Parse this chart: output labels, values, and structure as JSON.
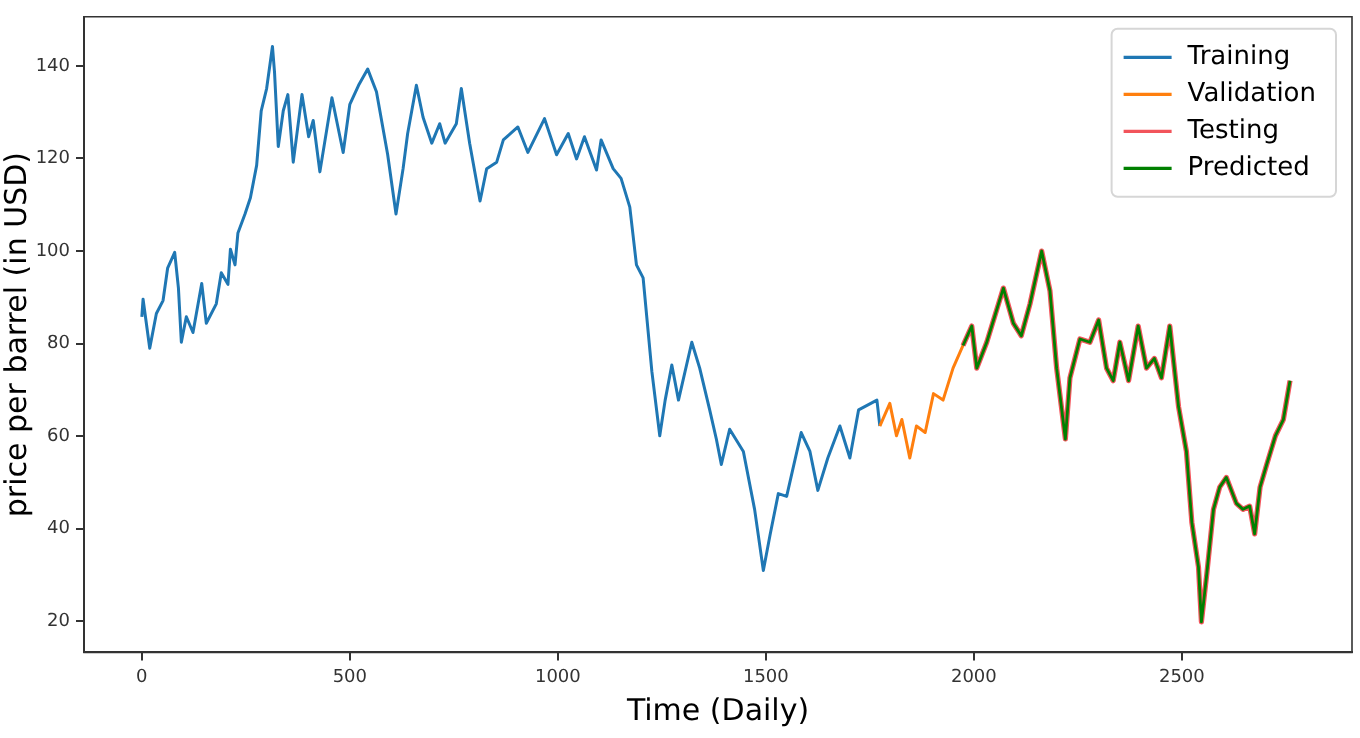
{
  "chart_data": {
    "type": "line",
    "xlabel": "Time (Daily)",
    "ylabel": "price per barrel (in USD)",
    "xlim": [
      -139,
      2909
    ],
    "ylim": [
      13.3,
      150.6
    ],
    "xticks": [
      0,
      500,
      1000,
      1500,
      2000,
      2500
    ],
    "yticks": [
      20,
      40,
      60,
      80,
      100,
      120,
      140
    ],
    "grid": false,
    "legend": "top right",
    "marker": "none",
    "line_style": "solid",
    "series": [
      {
        "name": "Training",
        "color": "#1f77b4",
        "x": [
          0,
          3,
          19,
          35,
          51,
          62,
          79,
          88,
          95,
          107,
          123,
          144,
          155,
          179,
          191,
          207,
          213,
          224,
          231,
          248,
          261,
          276,
          287,
          300,
          314,
          319,
          328,
          340,
          351,
          364,
          385,
          401,
          412,
          428,
          457,
          484,
          500,
          521,
          543,
          564,
          591,
          611,
          628,
          639,
          660,
          676,
          697,
          716,
          729,
          756,
          768,
          788,
          813,
          829,
          853,
          869,
          904,
          928,
          968,
          997,
          1025,
          1045,
          1064,
          1093,
          1104,
          1133,
          1152,
          1173,
          1189,
          1205,
          1226,
          1245,
          1258,
          1274,
          1290,
          1322,
          1341,
          1365,
          1381,
          1393,
          1413,
          1446,
          1473,
          1494,
          1510,
          1530,
          1550,
          1585,
          1606,
          1625,
          1649,
          1678,
          1702,
          1723,
          1767,
          1774
        ],
        "values": [
          85.8,
          89.6,
          79,
          86.5,
          89.3,
          96.3,
          99.7,
          92,
          80.3,
          85.8,
          82.4,
          93,
          84.4,
          88.6,
          95.3,
          92.8,
          100.4,
          97,
          103.9,
          108,
          111.5,
          118.5,
          130.3,
          135.1,
          144.2,
          138.6,
          122.6,
          130.3,
          133.8,
          119.2,
          133.8,
          124.7,
          128.2,
          117.1,
          133.1,
          121.3,
          131.7,
          135.8,
          139.3,
          134.4,
          120.8,
          108,
          117.8,
          125.4,
          135.8,
          128.9,
          123.3,
          127.5,
          123.3,
          127.5,
          135.1,
          123.3,
          110.8,
          117.8,
          119.2,
          124,
          126.8,
          121.3,
          128.6,
          120.8,
          125.4,
          119.9,
          124.7,
          117.5,
          124,
          117.8,
          115.7,
          109.5,
          97,
          94.2,
          74,
          60.1,
          67.8,
          75.4,
          67.8,
          80.3,
          74.7,
          65.7,
          59.4,
          53.9,
          61.5,
          56.7,
          44.2,
          31,
          38.6,
          47.6,
          47,
          60.8,
          56.7,
          48.3,
          55.3,
          62.2,
          55.3,
          65.7,
          67.8,
          62.2
        ]
      },
      {
        "name": "Validation",
        "color": "#ff7f0e",
        "x": [
          1774,
          1798,
          1814,
          1827,
          1846,
          1862,
          1883,
          1903,
          1926,
          1950,
          1974
        ],
        "values": [
          62.2,
          67.1,
          60.1,
          63.6,
          55.3,
          62.2,
          60.8,
          69.2,
          67.8,
          74.7,
          79.6
        ]
      },
      {
        "name": "Testing",
        "color": "#f2545b",
        "x": [
          1974,
          1995,
          2007,
          2031,
          2071,
          2095,
          2114,
          2135,
          2163,
          2183,
          2199,
          2220,
          2231,
          2255,
          2279,
          2300,
          2319,
          2335,
          2351,
          2372,
          2395,
          2415,
          2434,
          2451,
          2471,
          2492,
          2511,
          2524,
          2540,
          2547,
          2560,
          2576,
          2591,
          2607,
          2631,
          2647,
          2663,
          2675,
          2688,
          2704,
          2725,
          2744,
          2760
        ],
        "values": [
          79.6,
          83.8,
          74.7,
          80.3,
          92,
          84.4,
          81.7,
          88.6,
          100,
          91.4,
          74.7,
          59.4,
          72.6,
          81,
          80.3,
          85.1,
          74.7,
          72,
          80.3,
          72,
          83.8,
          74.7,
          76.8,
          72.6,
          83.8,
          66.4,
          56.7,
          41.4,
          31.7,
          19.9,
          30.3,
          44.2,
          49,
          51.1,
          45.5,
          44.2,
          44.9,
          38.9,
          49,
          53.9,
          60.1,
          63.6,
          72
        ]
      },
      {
        "name": "Predicted",
        "color": "#008000",
        "x": [
          1974,
          1995,
          2007,
          2031,
          2071,
          2095,
          2114,
          2135,
          2163,
          2183,
          2199,
          2220,
          2231,
          2255,
          2279,
          2300,
          2319,
          2335,
          2351,
          2372,
          2395,
          2415,
          2434,
          2451,
          2471,
          2492,
          2511,
          2524,
          2540,
          2547,
          2560,
          2576,
          2591,
          2607,
          2631,
          2647,
          2663,
          2675,
          2688,
          2704,
          2725,
          2744,
          2760
        ],
        "values": [
          79.6,
          83.8,
          74.7,
          80.3,
          92,
          84.4,
          81.7,
          88.6,
          100,
          91.4,
          74.7,
          59.4,
          72.6,
          81,
          80.3,
          85.1,
          74.7,
          72,
          80.3,
          72,
          83.8,
          74.7,
          76.8,
          72.6,
          83.8,
          66.4,
          56.7,
          41.4,
          31.7,
          19.9,
          30.3,
          44.2,
          49,
          51.1,
          45.5,
          44.2,
          44.9,
          38.9,
          49,
          53.9,
          60.1,
          63.6,
          72
        ]
      }
    ]
  }
}
